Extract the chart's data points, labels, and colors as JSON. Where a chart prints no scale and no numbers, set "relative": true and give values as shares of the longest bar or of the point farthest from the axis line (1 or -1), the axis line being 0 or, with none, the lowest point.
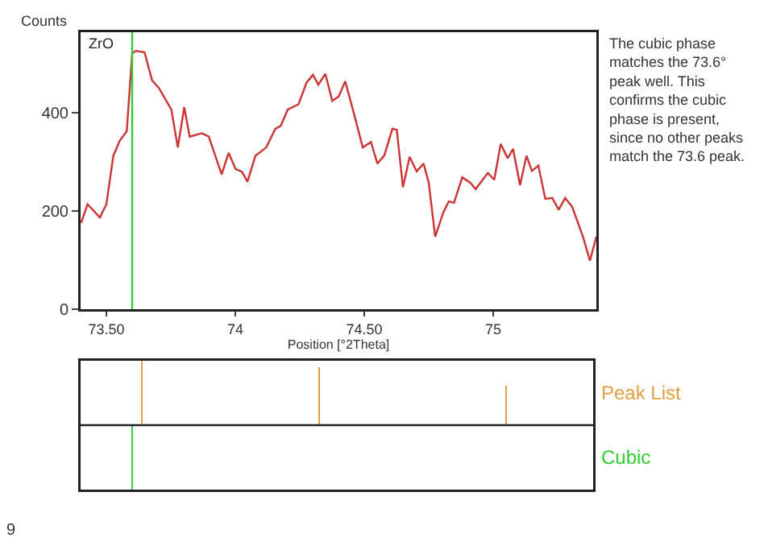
{
  "chart_data": [
    {
      "type": "line",
      "xlabel": "Position [°2Theta]",
      "ylabel": "Counts",
      "x": [
        73.402,
        73.427,
        73.475,
        73.5,
        73.527,
        73.552,
        73.579,
        73.6,
        73.614,
        73.648,
        73.677,
        73.704,
        73.752,
        73.777,
        73.802,
        73.823,
        73.87,
        73.897,
        73.947,
        73.974,
        74.001,
        74.026,
        74.047,
        74.078,
        74.12,
        74.155,
        74.176,
        74.203,
        74.245,
        74.276,
        74.301,
        74.322,
        74.349,
        74.376,
        74.401,
        74.426,
        74.459,
        74.494,
        74.526,
        74.551,
        74.578,
        74.609,
        74.626,
        74.65,
        74.676,
        74.703,
        74.73,
        74.75,
        74.775,
        74.807,
        74.828,
        74.848,
        74.88,
        74.911,
        74.932,
        74.979,
        75.004,
        75.029,
        75.056,
        75.077,
        75.104,
        75.129,
        75.15,
        75.175,
        75.202,
        75.229,
        75.254,
        75.279,
        75.306,
        75.348,
        75.375,
        75.4
      ],
      "series": [
        {
          "color": "#cc3333",
          "values": [
            176,
            214,
            187,
            214,
            313,
            344,
            363,
            522,
            527,
            524,
            467,
            451,
            407,
            330,
            412,
            352,
            359,
            352,
            275,
            319,
            286,
            280,
            260,
            313,
            330,
            368,
            374,
            407,
            418,
            462,
            478,
            458,
            480,
            425,
            434,
            465,
            401,
            330,
            341,
            297,
            314,
            368,
            366,
            249,
            311,
            281,
            297,
            258,
            148,
            198,
            220,
            217,
            269,
            258,
            245,
            278,
            264,
            337,
            308,
            327,
            253,
            313,
            282,
            293,
            225,
            227,
            203,
            227,
            209,
            148,
            99,
            148
          ]
        }
      ],
      "xlim": [
        73.4,
        75.4
      ],
      "xticks": [
        {
          "value": 73.5,
          "label": "73.50"
        },
        74,
        {
          "value": 74.5,
          "label": "74.50"
        },
        75
      ],
      "ylim": [
        0,
        565
      ],
      "yticks": [
        0,
        200,
        400
      ],
      "grid": false,
      "legend": false,
      "marker": "none",
      "line_style": "solid",
      "ref_lines": [
        {
          "axis": "x",
          "value": 73.6,
          "color": "#33cc33"
        }
      ],
      "annotations": [
        "ZrO",
        "The cubic phase matches the 73.6° peak well. This confirms the cubic phase is present, since no other peaks match the 73.6 peak.",
        "9"
      ]
    },
    {
      "type": "bar",
      "relative": true,
      "xlim": [
        73.4,
        75.4
      ],
      "legend": false,
      "series": [
        {
          "name": "Peak List",
          "color": "#e0a040",
          "x": [
            73.64,
            74.33,
            75.06
          ],
          "values": [
            1,
            0.9,
            0.61
          ]
        },
        {
          "name": "Cubic",
          "color": "#33cc33",
          "x": [
            73.6
          ],
          "values": [
            -1
          ]
        }
      ]
    }
  ]
}
